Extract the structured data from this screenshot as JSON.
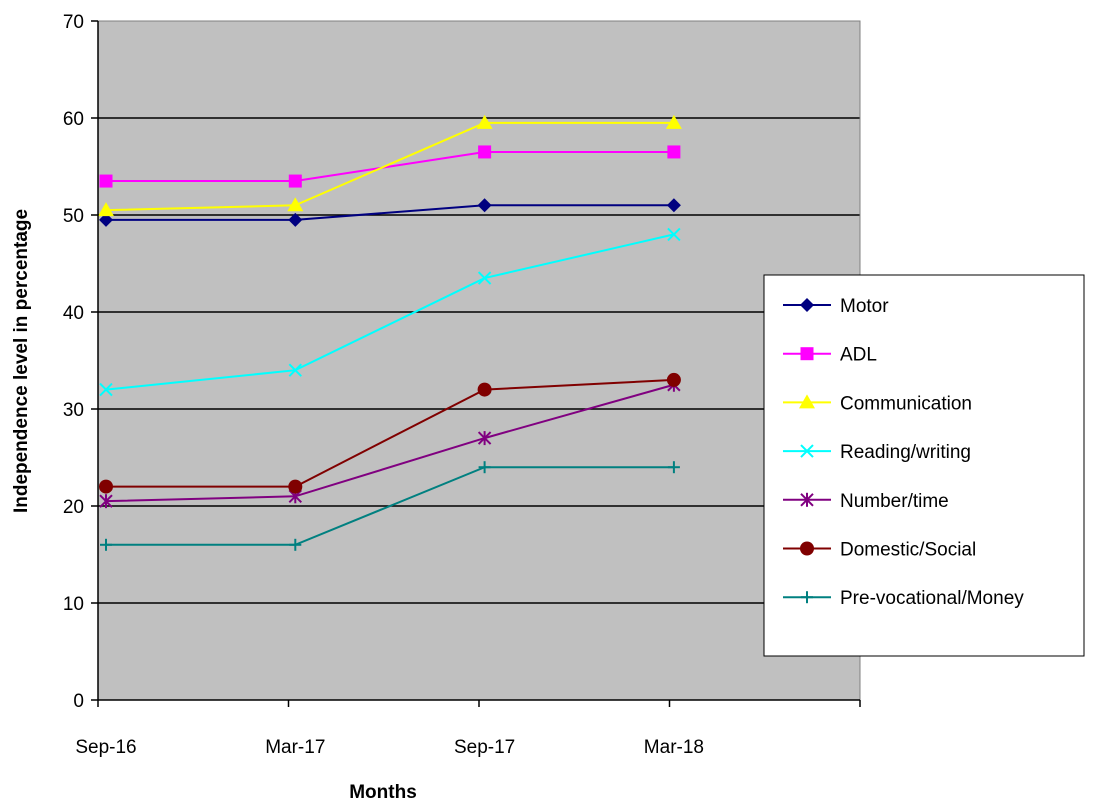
{
  "chart_data": {
    "type": "line",
    "title": "",
    "xlabel": "Months",
    "ylabel": "Independence level in percentage",
    "categories": [
      "Sep-16",
      "Mar-17",
      "Sep-17",
      "Mar-18"
    ],
    "ylim": [
      0,
      70
    ],
    "yticks": [
      0,
      10,
      20,
      30,
      40,
      50,
      60,
      70
    ],
    "grid": "horizontal",
    "plot_background": "#c0c0c0",
    "legend_position": "right",
    "series": [
      {
        "name": "Motor",
        "values": [
          49.5,
          49.5,
          51,
          51
        ],
        "color": "#000080",
        "marker": "diamond"
      },
      {
        "name": "ADL",
        "values": [
          53.5,
          53.5,
          56.5,
          56.5
        ],
        "color": "#ff00ff",
        "marker": "square"
      },
      {
        "name": "Communication",
        "values": [
          50.5,
          51,
          59.5,
          59.5
        ],
        "color": "#ffff00",
        "marker": "triangle"
      },
      {
        "name": "Reading/writing",
        "values": [
          32,
          34,
          43.5,
          48
        ],
        "color": "#00ffff",
        "marker": "x"
      },
      {
        "name": "Number/time",
        "values": [
          20.5,
          21,
          27,
          32.5
        ],
        "color": "#800080",
        "marker": "star"
      },
      {
        "name": "Domestic/Social",
        "values": [
          22,
          22,
          32,
          33
        ],
        "color": "#800000",
        "marker": "circle"
      },
      {
        "name": "Pre-vocational/Money",
        "values": [
          16,
          16,
          24,
          24
        ],
        "color": "#008080",
        "marker": "plus"
      }
    ]
  }
}
